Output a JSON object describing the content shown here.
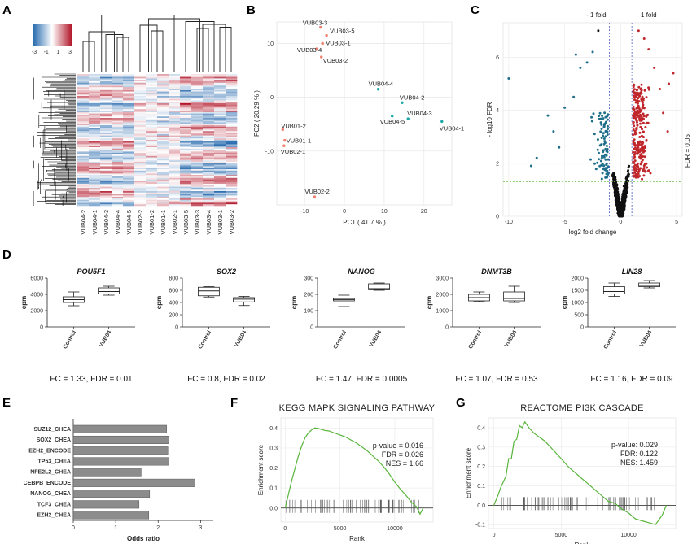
{
  "panels": {
    "A": {
      "label": "A"
    },
    "B": {
      "label": "B"
    },
    "C": {
      "label": "C"
    },
    "D": {
      "label": "D"
    },
    "E": {
      "label": "E"
    },
    "F": {
      "label": "F"
    },
    "G": {
      "label": "G"
    }
  },
  "colors": {
    "red": "#c0272d",
    "blue": "#1f6f8b",
    "teal": "#1aa7a7",
    "salmon": "#f07e6e",
    "green": "#58b53a",
    "bar": "#8c8c8c",
    "black": "#111111"
  },
  "chart_data": [
    {
      "id": "A",
      "type": "heatmap",
      "colorbar": {
        "ticks": [
          "-3",
          "-1",
          "1",
          "3"
        ]
      },
      "columns": [
        "VUB04-2",
        "VUB04-1",
        "VUB04-3",
        "VUB04-4",
        "VUB04-5",
        "VUB02-2",
        "VUB01-2",
        "VUB01-1",
        "VUB02-1",
        "VUB03-5",
        "VUB03-3",
        "VUB03-4",
        "VUB03-1",
        "VUB03-2"
      ]
    },
    {
      "id": "B",
      "type": "scatter",
      "xlabel": "PC1 ( 41.7 % )",
      "ylabel": "PC2 ( 20.29 % )",
      "xlim": [
        -17,
        27
      ],
      "ylim": [
        -20,
        14
      ],
      "xticks": [
        "-10",
        "0",
        "10",
        "20"
      ],
      "yticks": [
        "10",
        "0",
        "-10"
      ],
      "points": [
        {
          "name": "VUB03-3",
          "x": -6,
          "y": 13,
          "group": "salmon"
        },
        {
          "name": "VUB03-5",
          "x": -4.5,
          "y": 11.5,
          "group": "salmon"
        },
        {
          "name": "VUB03-1",
          "x": -5.5,
          "y": 10,
          "group": "salmon"
        },
        {
          "name": "VUB03-4",
          "x": -7,
          "y": 9,
          "group": "salmon"
        },
        {
          "name": "VUB03-2",
          "x": -5.8,
          "y": 7.5,
          "group": "salmon"
        },
        {
          "name": "VUB04-4",
          "x": 8.5,
          "y": 1.5,
          "group": "teal"
        },
        {
          "name": "VUB04-2",
          "x": 14.5,
          "y": -1,
          "group": "teal"
        },
        {
          "name": "VUB04-3",
          "x": 16,
          "y": -4,
          "group": "teal"
        },
        {
          "name": "VUB04-5",
          "x": 12,
          "y": -3.5,
          "group": "teal"
        },
        {
          "name": "VUB04-1",
          "x": 24.5,
          "y": -4.5,
          "group": "teal"
        },
        {
          "name": "VUB01-2",
          "x": -15.5,
          "y": -6,
          "group": "salmon"
        },
        {
          "name": "VUB01-1",
          "x": -15,
          "y": -8,
          "group": "salmon"
        },
        {
          "name": "VUB02-1",
          "x": -15.2,
          "y": -9,
          "group": "salmon"
        },
        {
          "name": "VUB02-2",
          "x": -7.5,
          "y": -18.5,
          "group": "salmon"
        }
      ]
    },
    {
      "id": "C",
      "type": "scatter",
      "xlabel": "log2 fold change",
      "ylabel": "- log10 FDR",
      "xlim": [
        -10.5,
        5.5
      ],
      "ylim": [
        0,
        7.3
      ],
      "xticks": [
        "-10",
        "-5",
        "0",
        "5"
      ],
      "yticks": [
        "0",
        "2",
        "4",
        "6"
      ],
      "vlines": [
        {
          "x": -1,
          "label": "- 1 fold"
        },
        {
          "x": 1,
          "label": "+ 1 fold"
        }
      ],
      "hline": {
        "y": 1.3,
        "label": "FDR = 0.05"
      }
    },
    {
      "id": "D",
      "type": "box",
      "ylabel": "cpm",
      "categories": [
        "Control",
        "VUB04"
      ],
      "plots": [
        {
          "title": "POU5F1",
          "ylim": [
            0,
            6000
          ],
          "yticks": [
            "0",
            "2000",
            "4000",
            "6000"
          ],
          "boxes": [
            [
              2600,
              3000,
              3350,
              3700,
              4300
            ],
            [
              3900,
              4050,
              4350,
              4800,
              5000
            ]
          ],
          "stat": "FC = 1.33, FDR = 0.01"
        },
        {
          "title": "SOX2",
          "ylim": [
            0,
            800
          ],
          "yticks": [
            "0",
            "200",
            "400",
            "600",
            "800"
          ],
          "boxes": [
            [
              490,
              510,
              590,
              650,
              660
            ],
            [
              350,
              410,
              455,
              480,
              500
            ]
          ],
          "stat": "FC = 0.8, FDR = 0.02"
        },
        {
          "title": "NANOG",
          "ylim": [
            0,
            300
          ],
          "yticks": [
            "0",
            "100",
            "200",
            "300"
          ],
          "boxes": [
            [
              125,
              160,
              168,
              175,
              195
            ],
            [
              225,
              228,
              235,
              265,
              270
            ]
          ],
          "stat": "FC = 1.47, FDR = 0.0005"
        },
        {
          "title": "DNMT3B",
          "ylim": [
            0,
            3000
          ],
          "yticks": [
            "0",
            "1000",
            "2000",
            "3000"
          ],
          "boxes": [
            [
              1550,
              1600,
              1800,
              2000,
              2150
            ],
            [
              1500,
              1600,
              1750,
              2150,
              2500
            ]
          ],
          "stat": "FC = 1.07, FDR = 0.53"
        },
        {
          "title": "LIN28",
          "ylim": [
            0,
            2000
          ],
          "yticks": [
            "0",
            "500",
            "1000",
            "1500",
            "2000"
          ],
          "boxes": [
            [
              1250,
              1350,
              1450,
              1650,
              1800
            ],
            [
              1600,
              1650,
              1700,
              1800,
              1900
            ]
          ],
          "stat": "FC = 1.16, FDR = 0.09"
        }
      ]
    },
    {
      "id": "E",
      "type": "bar",
      "orientation": "horizontal",
      "xlabel": "Odds ratio",
      "xlim": [
        0,
        3.3
      ],
      "xticks": [
        "0",
        "1",
        "2",
        "3"
      ],
      "categories": [
        "SUZ12_CHEA",
        "SOX2_CHEA",
        "EZH2_ENCODE",
        "TP53_CHEA",
        "NFE2L2_CHEA",
        "CEBPB_ENCODE",
        "NANOG_CHEA",
        "TCF3_CHEA",
        "EZH2_CHEA"
      ],
      "values": [
        2.2,
        2.25,
        2.23,
        2.25,
        1.6,
        2.87,
        1.8,
        1.55,
        1.78
      ]
    },
    {
      "id": "F",
      "type": "line",
      "title": "KEGG MAPK SIGNALING PATHWAY",
      "xlabel": "Rank",
      "ylabel": "Enrichment score",
      "xlim": [
        -400,
        13500
      ],
      "ylim": [
        -0.07,
        0.45
      ],
      "xticks": [
        "0",
        "5000",
        "10000"
      ],
      "yticks": [
        "0.0",
        "0.1",
        "0.2",
        "0.3",
        "0.4"
      ],
      "stats": [
        "p-value = 0.016",
        "FDR = 0.026",
        "NES = 1.66"
      ],
      "x": [
        0,
        300,
        600,
        900,
        1200,
        1500,
        1800,
        2100,
        2400,
        2700,
        3000,
        3300,
        3600,
        4000,
        4500,
        5000,
        5500,
        6000,
        6500,
        7000,
        7500,
        8000,
        8500,
        9000,
        9500,
        10000,
        10500,
        11000,
        11500,
        12000,
        12300,
        12600
      ],
      "y": [
        0.0,
        0.07,
        0.14,
        0.2,
        0.26,
        0.31,
        0.35,
        0.375,
        0.39,
        0.4,
        0.398,
        0.393,
        0.388,
        0.385,
        0.375,
        0.365,
        0.355,
        0.34,
        0.325,
        0.305,
        0.285,
        0.26,
        0.235,
        0.205,
        0.17,
        0.13,
        0.095,
        0.065,
        0.03,
        0.005,
        -0.03,
        0.0
      ]
    },
    {
      "id": "G",
      "type": "line",
      "title": "REACTOME PI3K CASCADE",
      "xlabel": "Rank",
      "ylabel": "Enrichment score",
      "xlim": [
        -400,
        13500
      ],
      "ylim": [
        -0.12,
        0.45
      ],
      "xticks": [
        "0",
        "5000",
        "10000"
      ],
      "yticks": [
        "-0.1",
        "0.0",
        "0.1",
        "0.2",
        "0.3",
        "0.4"
      ],
      "stats": [
        "p-value: 0.029",
        "FDR: 0.122",
        "NES: 1.459"
      ],
      "x": [
        0,
        300,
        500,
        700,
        900,
        1100,
        1300,
        1500,
        1700,
        1900,
        2100,
        2300,
        2600,
        3000,
        3400,
        3800,
        4200,
        4600,
        5000,
        5500,
        6000,
        6500,
        7000,
        7500,
        8000,
        8500,
        9000,
        9500,
        10000,
        10500,
        11000,
        11500,
        12000,
        12500,
        12800
      ],
      "y": [
        0.0,
        0.05,
        0.09,
        0.12,
        0.17,
        0.22,
        0.26,
        0.31,
        0.36,
        0.39,
        0.42,
        0.41,
        0.4,
        0.37,
        0.35,
        0.33,
        0.3,
        0.27,
        0.24,
        0.2,
        0.17,
        0.14,
        0.11,
        0.08,
        0.05,
        0.02,
        0.01,
        -0.02,
        -0.04,
        -0.07,
        -0.08,
        -0.09,
        -0.1,
        -0.05,
        0.0
      ]
    }
  ]
}
